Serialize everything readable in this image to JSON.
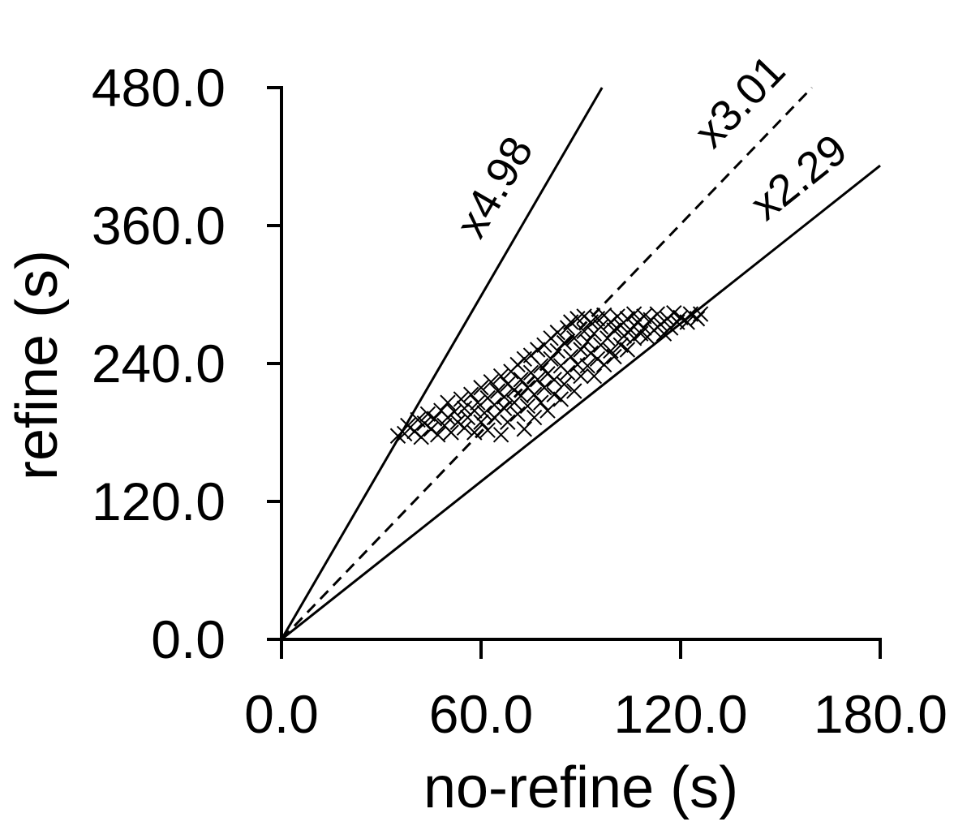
{
  "chart_data": {
    "type": "scatter",
    "title": "",
    "xlabel": "no-refine (s)",
    "ylabel": "refine (s)",
    "xlim": [
      0,
      180
    ],
    "ylim": [
      0,
      480
    ],
    "x_ticks": [
      "0.0",
      "60.0",
      "120.0",
      "180.0"
    ],
    "y_ticks": [
      "0.0",
      "120.0",
      "240.0",
      "360.0",
      "480.0"
    ],
    "grid": false,
    "legend": "none",
    "marker": "x",
    "point_color": "#000000",
    "reference_lines": [
      {
        "label": "x4.98",
        "slope": 4.98,
        "style": "solid"
      },
      {
        "label": "x3.01",
        "slope": 3.01,
        "style": "dashed"
      },
      {
        "label": "x2.29",
        "slope": 2.29,
        "style": "solid"
      }
    ],
    "series": [
      {
        "points": [
          [
            35,
            177
          ],
          [
            37,
            179
          ],
          [
            38,
            186
          ],
          [
            40,
            181
          ],
          [
            41,
            191
          ],
          [
            42,
            176
          ],
          [
            43,
            188
          ],
          [
            44,
            196
          ],
          [
            45,
            183
          ],
          [
            46,
            192
          ],
          [
            47,
            178
          ],
          [
            48,
            199
          ],
          [
            49,
            186
          ],
          [
            50,
            193
          ],
          [
            50,
            206
          ],
          [
            51,
            180
          ],
          [
            52,
            198
          ],
          [
            53,
            189
          ],
          [
            54,
            209
          ],
          [
            55,
            184
          ],
          [
            55,
            201
          ],
          [
            56,
            193
          ],
          [
            57,
            213
          ],
          [
            58,
            180
          ],
          [
            58,
            199
          ],
          [
            59,
            206
          ],
          [
            60,
            189
          ],
          [
            60,
            219
          ],
          [
            61,
            197
          ],
          [
            62,
            182
          ],
          [
            62,
            210
          ],
          [
            63,
            224
          ],
          [
            64,
            193
          ],
          [
            64,
            204
          ],
          [
            65,
            216
          ],
          [
            66,
            178
          ],
          [
            66,
            229
          ],
          [
            67,
            201
          ],
          [
            67,
            211
          ],
          [
            68,
            222
          ],
          [
            68,
            189
          ],
          [
            69,
            233
          ],
          [
            70,
            206
          ],
          [
            70,
            217
          ],
          [
            71,
            196
          ],
          [
            71,
            239
          ],
          [
            72,
            212
          ],
          [
            72,
            226
          ],
          [
            73,
            183
          ],
          [
            73,
            244
          ],
          [
            74,
            203
          ],
          [
            74,
            219
          ],
          [
            75,
            232
          ],
          [
            75,
            247
          ],
          [
            76,
            193
          ],
          [
            76,
            213
          ],
          [
            77,
            226
          ],
          [
            77,
            252
          ],
          [
            78,
            206
          ],
          [
            78,
            238
          ],
          [
            79,
            219
          ],
          [
            79,
            256
          ],
          [
            80,
            199
          ],
          [
            80,
            231
          ],
          [
            81,
            244
          ],
          [
            81,
            262
          ],
          [
            82,
            213
          ],
          [
            82,
            226
          ],
          [
            83,
            251
          ],
          [
            83,
            267
          ],
          [
            84,
            209
          ],
          [
            84,
            238
          ],
          [
            85,
            222
          ],
          [
            85,
            258
          ],
          [
            86,
            271
          ],
          [
            86,
            232
          ],
          [
            87,
            246
          ],
          [
            87,
            276
          ],
          [
            88,
            216
          ],
          [
            88,
            262
          ],
          [
            89,
            239
          ],
          [
            89,
            279
          ],
          [
            90,
            229
          ],
          [
            90,
            252
          ],
          [
            91,
            268
          ],
          [
            91,
            281
          ],
          [
            92,
            238
          ],
          [
            92,
            259
          ],
          [
            93,
            249
          ],
          [
            93,
            276
          ],
          [
            94,
            229
          ],
          [
            94,
            266
          ],
          [
            95,
            244
          ],
          [
            95,
            279
          ],
          [
            96,
            256
          ],
          [
            96,
            272
          ],
          [
            97,
            239
          ],
          [
            97,
            282
          ],
          [
            98,
            262
          ],
          [
            99,
            251
          ],
          [
            99,
            276
          ],
          [
            100,
            246
          ],
          [
            100,
            269
          ],
          [
            101,
            281
          ],
          [
            102,
            256
          ],
          [
            102,
            273
          ],
          [
            103,
            264
          ],
          [
            104,
            279
          ],
          [
            104,
            252
          ],
          [
            105,
            269
          ],
          [
            106,
            283
          ],
          [
            106,
            262
          ],
          [
            107,
            276
          ],
          [
            108,
            266
          ],
          [
            109,
            281
          ],
          [
            109,
            271
          ],
          [
            110,
            263
          ],
          [
            111,
            278
          ],
          [
            112,
            269
          ],
          [
            113,
            283
          ],
          [
            114,
            274
          ],
          [
            115,
            266
          ],
          [
            116,
            279
          ],
          [
            117,
            271
          ],
          [
            118,
            284
          ],
          [
            119,
            276
          ],
          [
            120,
            280
          ],
          [
            122,
            276
          ],
          [
            123,
            283
          ],
          [
            125,
            279
          ],
          [
            126,
            283
          ]
        ]
      }
    ]
  }
}
